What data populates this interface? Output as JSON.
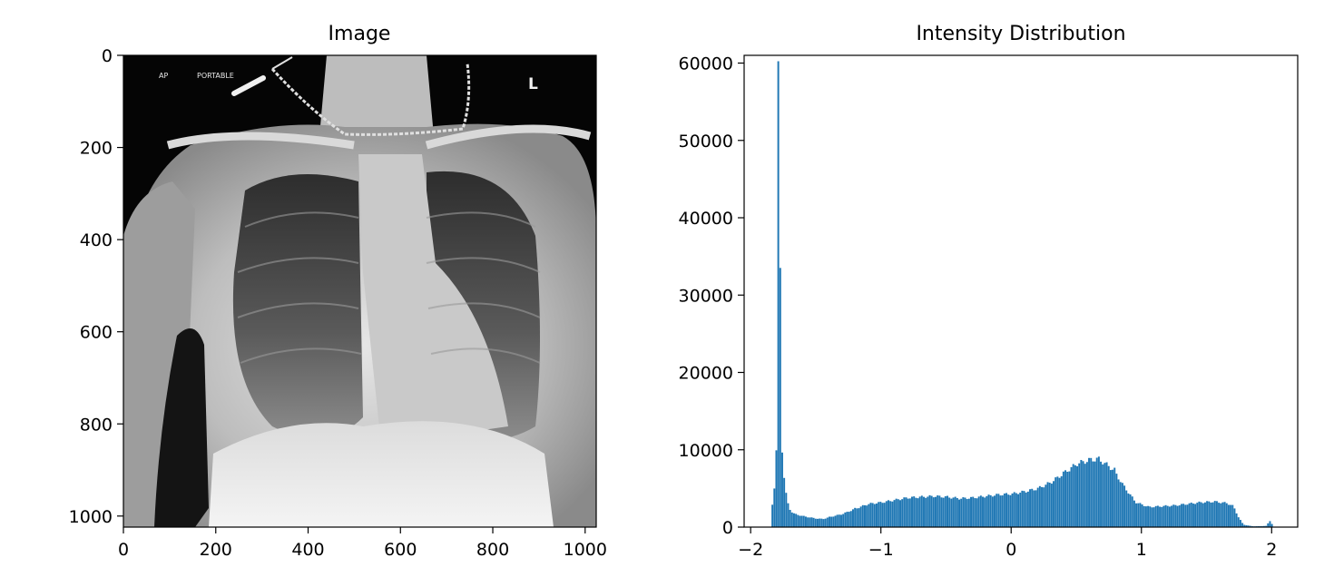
{
  "chart_data": [
    {
      "type": "image",
      "title": "Image",
      "xlabel": "",
      "ylabel": "",
      "xlim": [
        0,
        1024
      ],
      "ylim": [
        1024,
        0
      ],
      "xticks": [
        0,
        200,
        400,
        600,
        800,
        1000
      ],
      "yticks": [
        0,
        200,
        400,
        600,
        800,
        1000
      ],
      "image_overlay_text": [
        "AP",
        "PORTABLE",
        "L"
      ]
    },
    {
      "type": "bar",
      "title": "Intensity Distribution",
      "xlabel": "",
      "ylabel": "",
      "xlim": [
        -2.05,
        2.2
      ],
      "ylim": [
        0,
        61000
      ],
      "xticks": [
        -2,
        -1,
        0,
        1,
        2
      ],
      "xtick_labels": [
        "−2",
        "−1",
        "0",
        "1",
        "2"
      ],
      "yticks": [
        0,
        10000,
        20000,
        30000,
        40000,
        50000,
        60000
      ],
      "bar_color": "#1f77b4",
      "bin_width": 0.0151,
      "x": [
        -1.84,
        -1.82,
        -1.8,
        -1.79,
        -1.77,
        -1.75,
        -1.74,
        -1.72,
        -1.7,
        -1.67,
        -1.6,
        -1.5,
        -1.45,
        -1.4,
        -1.3,
        -1.2,
        -1.1,
        -1.0,
        -0.9,
        -0.8,
        -0.7,
        -0.6,
        -0.5,
        -0.4,
        -0.3,
        -0.2,
        -0.1,
        0.0,
        0.1,
        0.2,
        0.3,
        0.4,
        0.5,
        0.6,
        0.66,
        0.7,
        0.78,
        0.85,
        0.95,
        1.05,
        1.15,
        1.25,
        1.35,
        1.45,
        1.55,
        1.65,
        1.7,
        1.73,
        1.75,
        1.78,
        1.85,
        1.95,
        1.98,
        2.0
      ],
      "values": [
        2900,
        5200,
        14600,
        58000,
        10000,
        6500,
        4300,
        3000,
        2100,
        1700,
        1400,
        1100,
        1050,
        1300,
        1700,
        2400,
        3000,
        3200,
        3500,
        3800,
        3900,
        4000,
        3900,
        3700,
        3800,
        4000,
        4200,
        4300,
        4600,
        5000,
        5800,
        7000,
        8200,
        8700,
        8800,
        8400,
        7400,
        5500,
        3200,
        2600,
        2700,
        2800,
        3000,
        3200,
        3300,
        3100,
        2700,
        1600,
        900,
        300,
        100,
        150,
        800,
        300
      ]
    }
  ]
}
